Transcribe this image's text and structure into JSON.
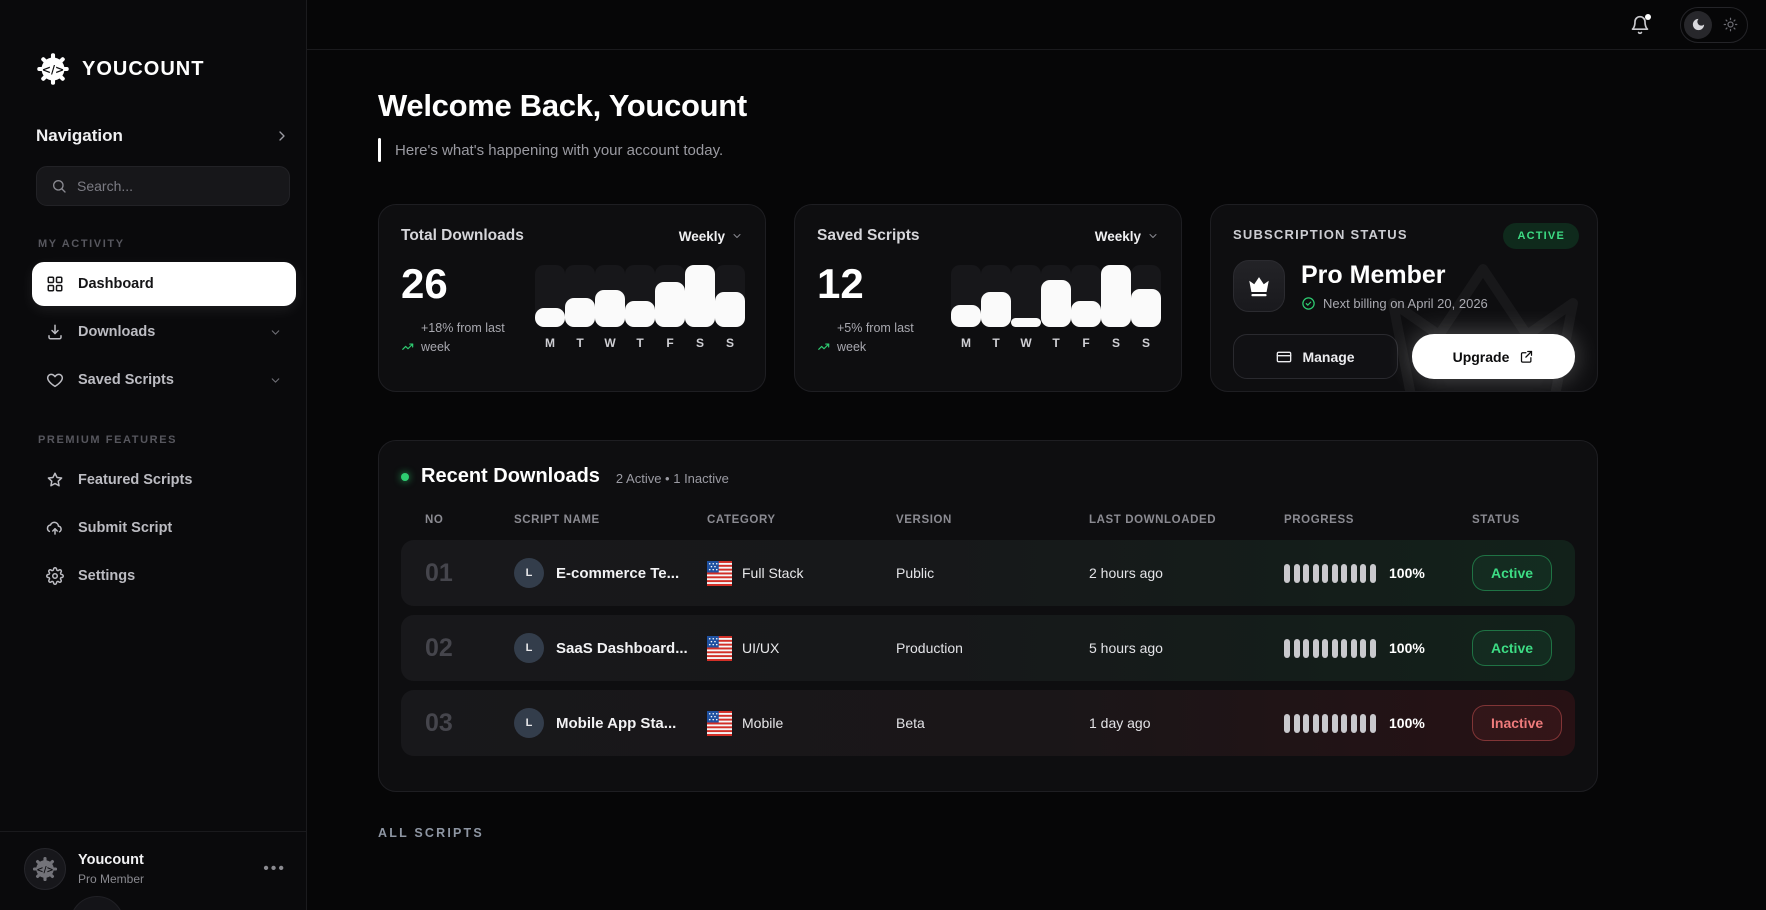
{
  "sidebar": {
    "logo_text": "YOUCOUNT",
    "nav_header": "Navigation",
    "search_placeholder": "Search...",
    "sections": [
      {
        "label": "MY ACTIVITY",
        "items": [
          {
            "label": "Dashboard"
          },
          {
            "label": "Downloads"
          },
          {
            "label": "Saved Scripts"
          }
        ]
      },
      {
        "label": "PREMIUM FEATURES",
        "items": [
          {
            "label": "Featured Scripts"
          },
          {
            "label": "Submit Script"
          },
          {
            "label": "Settings"
          }
        ]
      }
    ],
    "user": {
      "name": "Youcount",
      "role": "Pro Member"
    }
  },
  "header": {
    "title": "Welcome Back, Youcount",
    "subtitle": "Here's what's happening with your account today."
  },
  "stats": [
    {
      "title": "Total Downloads",
      "period": "Weekly",
      "value": "26",
      "delta": "+18% from last week",
      "days": [
        "M",
        "T",
        "W",
        "T",
        "F",
        "S",
        "S"
      ],
      "bars": [
        30,
        46,
        60,
        42,
        72,
        100,
        56
      ]
    },
    {
      "title": "Saved Scripts",
      "period": "Weekly",
      "value": "12",
      "delta": "+5% from last week",
      "days": [
        "M",
        "T",
        "W",
        "T",
        "F",
        "S",
        "S"
      ],
      "bars": [
        36,
        56,
        14,
        76,
        42,
        100,
        62
      ]
    }
  ],
  "subscription": {
    "label": "SUBSCRIPTION STATUS",
    "status_badge": "ACTIVE",
    "plan": "Pro Member",
    "billing": "Next billing on April 20, 2026",
    "manage_label": "Manage",
    "upgrade_label": "Upgrade"
  },
  "recent": {
    "title": "Recent Downloads",
    "summary": "2 Active • 1 Inactive",
    "columns": [
      "NO",
      "SCRIPT NAME",
      "CATEGORY",
      "VERSION",
      "LAST DOWNLOADED",
      "PROGRESS",
      "STATUS"
    ],
    "rows": [
      {
        "no": "01",
        "avatar": "L",
        "name": "E-commerce Te...",
        "category": "Full Stack",
        "version": "Public",
        "last_downloaded": "2 hours ago",
        "progress": "100%",
        "status": "Active"
      },
      {
        "no": "02",
        "avatar": "L",
        "name": "SaaS Dashboard...",
        "category": "UI/UX",
        "version": "Production",
        "last_downloaded": "5 hours ago",
        "progress": "100%",
        "status": "Active"
      },
      {
        "no": "03",
        "avatar": "L",
        "name": "Mobile App Sta...",
        "category": "Mobile",
        "version": "Beta",
        "last_downloaded": "1 day ago",
        "progress": "100%",
        "status": "Inactive"
      }
    ]
  },
  "footer": {
    "all_scripts": "ALL SCRIPTS"
  },
  "colors": {
    "accent_green": "#2ecc71",
    "danger_red": "#ee7b7b",
    "active_bg": "#0f2a1c",
    "card_bg": "#0e0e10"
  }
}
